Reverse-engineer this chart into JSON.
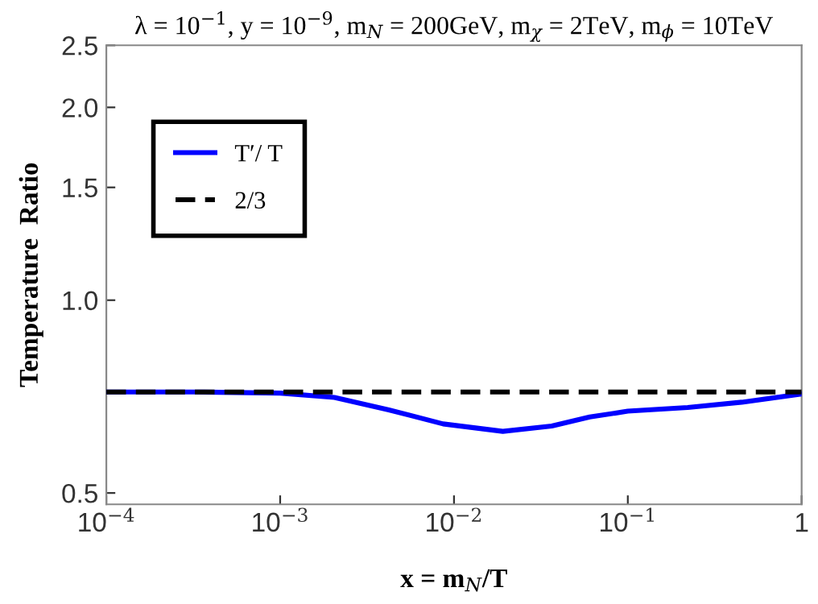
{
  "chart_data": {
    "type": "line",
    "title": "λ = 10$^{−1}$, y = 10$^{−9}$, m$_{N}$ = 200GeV, m$_{χ}$ = 2TeV, m$_{ϕ}$ = 10TeV",
    "xlabel": "x = m$_{N}$/T",
    "ylabel": "Temperature  Ratio",
    "log": "xy",
    "legend": "top left",
    "grid": false,
    "series": [
      {
        "name": "T′/ T",
        "color": "#0000ff",
        "line_style": "solid",
        "x": [
          0.0001,
          0.000316,
          0.001,
          0.00205,
          0.00422,
          0.00866,
          0.0191,
          0.0365,
          0.0604,
          0.1,
          0.221,
          0.453,
          1
        ],
        "values": [
          0.719,
          0.719,
          0.716,
          0.705,
          0.674,
          0.641,
          0.624,
          0.636,
          0.657,
          0.671,
          0.68,
          0.693,
          0.714
        ]
      },
      {
        "name": "2/3",
        "color": "#000000",
        "line_style": "dashed",
        "x": [
          0.0001,
          1
        ],
        "values": [
          0.719,
          0.719
        ]
      }
    ],
    "xlim": [
      0.0001,
      1
    ],
    "ylim": [
      0.48,
      2.5
    ],
    "xticks": [
      {
        "value": 0.0001,
        "label": "10$^{−4}$"
      },
      {
        "value": 0.001,
        "label": "10$^{−3}$"
      },
      {
        "value": 0.01,
        "label": "10$^{−2}$"
      },
      {
        "value": 0.1,
        "label": "10$^{−1}$"
      },
      1
    ],
    "yticks": [
      0.5,
      {
        "value": 1.0,
        "label": "1.0"
      },
      1.5,
      {
        "value": 2.0,
        "label": "2.0"
      },
      2.5
    ]
  }
}
